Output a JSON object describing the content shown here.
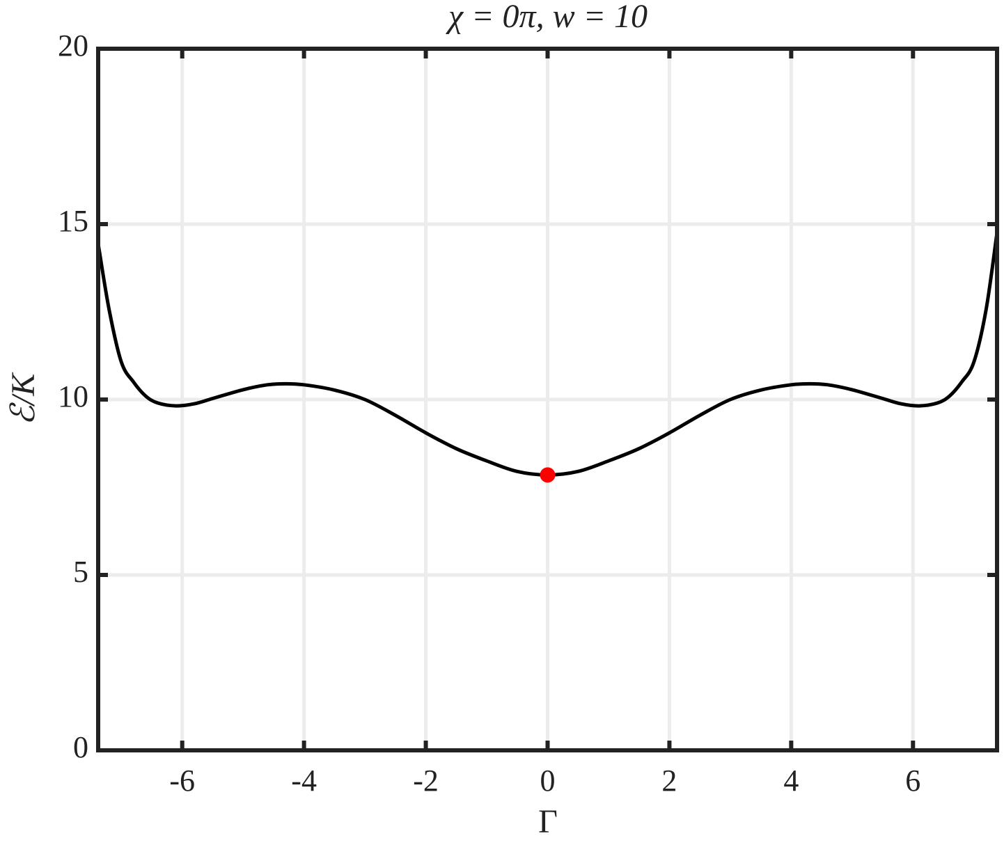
{
  "chart_data": {
    "type": "line",
    "title": "χ = 0π, w = 10",
    "xlabel": "Γ",
    "ylabel": "ℰ/K",
    "x": [
      -7.38,
      -7.2,
      -7,
      -6.8,
      -6.6,
      -6.4,
      -6.1,
      -5.8,
      -5.5,
      -5,
      -4.6,
      -4.3,
      -4,
      -3.5,
      -3,
      -2.5,
      -2,
      -1.5,
      -1,
      -0.5,
      0,
      0.5,
      1,
      1.5,
      2,
      2.5,
      3,
      3.5,
      4,
      4.3,
      4.6,
      5,
      5.5,
      5.8,
      6.1,
      6.4,
      6.6,
      6.8,
      7,
      7.2,
      7.38
    ],
    "values": [
      14.44,
      12.56,
      11.07,
      10.5,
      10.1,
      9.9,
      9.82,
      9.88,
      10.03,
      10.28,
      10.42,
      10.45,
      10.42,
      10.27,
      10.0,
      9.55,
      9.05,
      8.6,
      8.25,
      7.95,
      7.85,
      7.95,
      8.25,
      8.6,
      9.05,
      9.55,
      10.0,
      10.27,
      10.42,
      10.45,
      10.42,
      10.28,
      10.03,
      9.88,
      9.82,
      9.9,
      10.1,
      10.5,
      11.07,
      12.56,
      14.76
    ],
    "color": "#000000",
    "marker": {
      "x": 0,
      "y": 7.85,
      "color": "#ff0000"
    },
    "xlim": [
      -7.38,
      7.38
    ],
    "ylim": [
      0,
      20
    ],
    "xticks": [
      -6,
      -4,
      -2,
      0,
      2,
      4,
      6
    ],
    "yticks": [
      0,
      5,
      10,
      15,
      20
    ],
    "grid": true
  }
}
